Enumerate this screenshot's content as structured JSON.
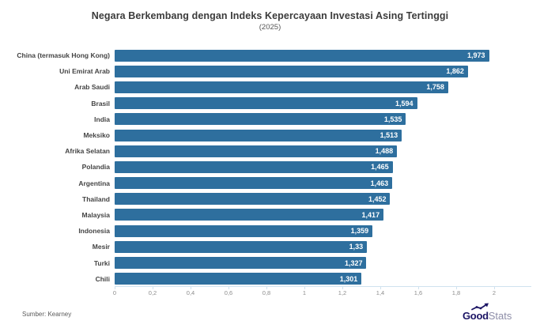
{
  "header": {
    "title": "Negara Berkembang dengan Indeks Kepercayaan Investasi Asing Tertinggi",
    "subtitle": "(2025)"
  },
  "footer": {
    "source": "Sumber: Kearney",
    "logo": {
      "bold": "Good",
      "light": "Stats"
    }
  },
  "colors": {
    "bar": "#2e6f9e",
    "value_label": "#ffffff",
    "axis_line": "#cfe2ef",
    "title": "#3b3b3b",
    "category_label": "#444444",
    "tick_label": "#8d8d8d",
    "logo_navy": "#1b1464",
    "logo_gray": "#8e8ea8"
  },
  "chart_data": {
    "type": "bar",
    "orientation": "horizontal",
    "title": "Negara Berkembang dengan Indeks Kepercayaan Investasi Asing Tertinggi",
    "subtitle": "(2025)",
    "xlabel": "",
    "ylabel": "",
    "xlim": [
      0,
      2
    ],
    "grid": false,
    "legend": false,
    "categories": [
      "China (termasuk Hong Kong)",
      "Uni Emirat Arab",
      "Arab Saudi",
      "Brasil",
      "India",
      "Meksiko",
      "Afrika Selatan",
      "Polandia",
      "Argentina",
      "Thailand",
      "Malaysia",
      "Indonesia",
      "Mesir",
      "Turki",
      "Chili"
    ],
    "values": [
      1.973,
      1.862,
      1.758,
      1.594,
      1.535,
      1.513,
      1.488,
      1.465,
      1.463,
      1.452,
      1.417,
      1.359,
      1.33,
      1.327,
      1.301
    ],
    "value_labels": [
      "1,973",
      "1,862",
      "1,758",
      "1,594",
      "1,535",
      "1,513",
      "1,488",
      "1,465",
      "1,463",
      "1,452",
      "1,417",
      "1,359",
      "1,33",
      "1,327",
      "1,301"
    ],
    "x_ticks": [
      0,
      0.2,
      0.4,
      0.6,
      0.8,
      1,
      1.2,
      1.4,
      1.6,
      1.8,
      2
    ],
    "x_tick_labels": [
      "0",
      "0,2",
      "0,4",
      "0,6",
      "0,8",
      "1",
      "1,2",
      "1,4",
      "1,6",
      "1,8",
      "2"
    ]
  }
}
